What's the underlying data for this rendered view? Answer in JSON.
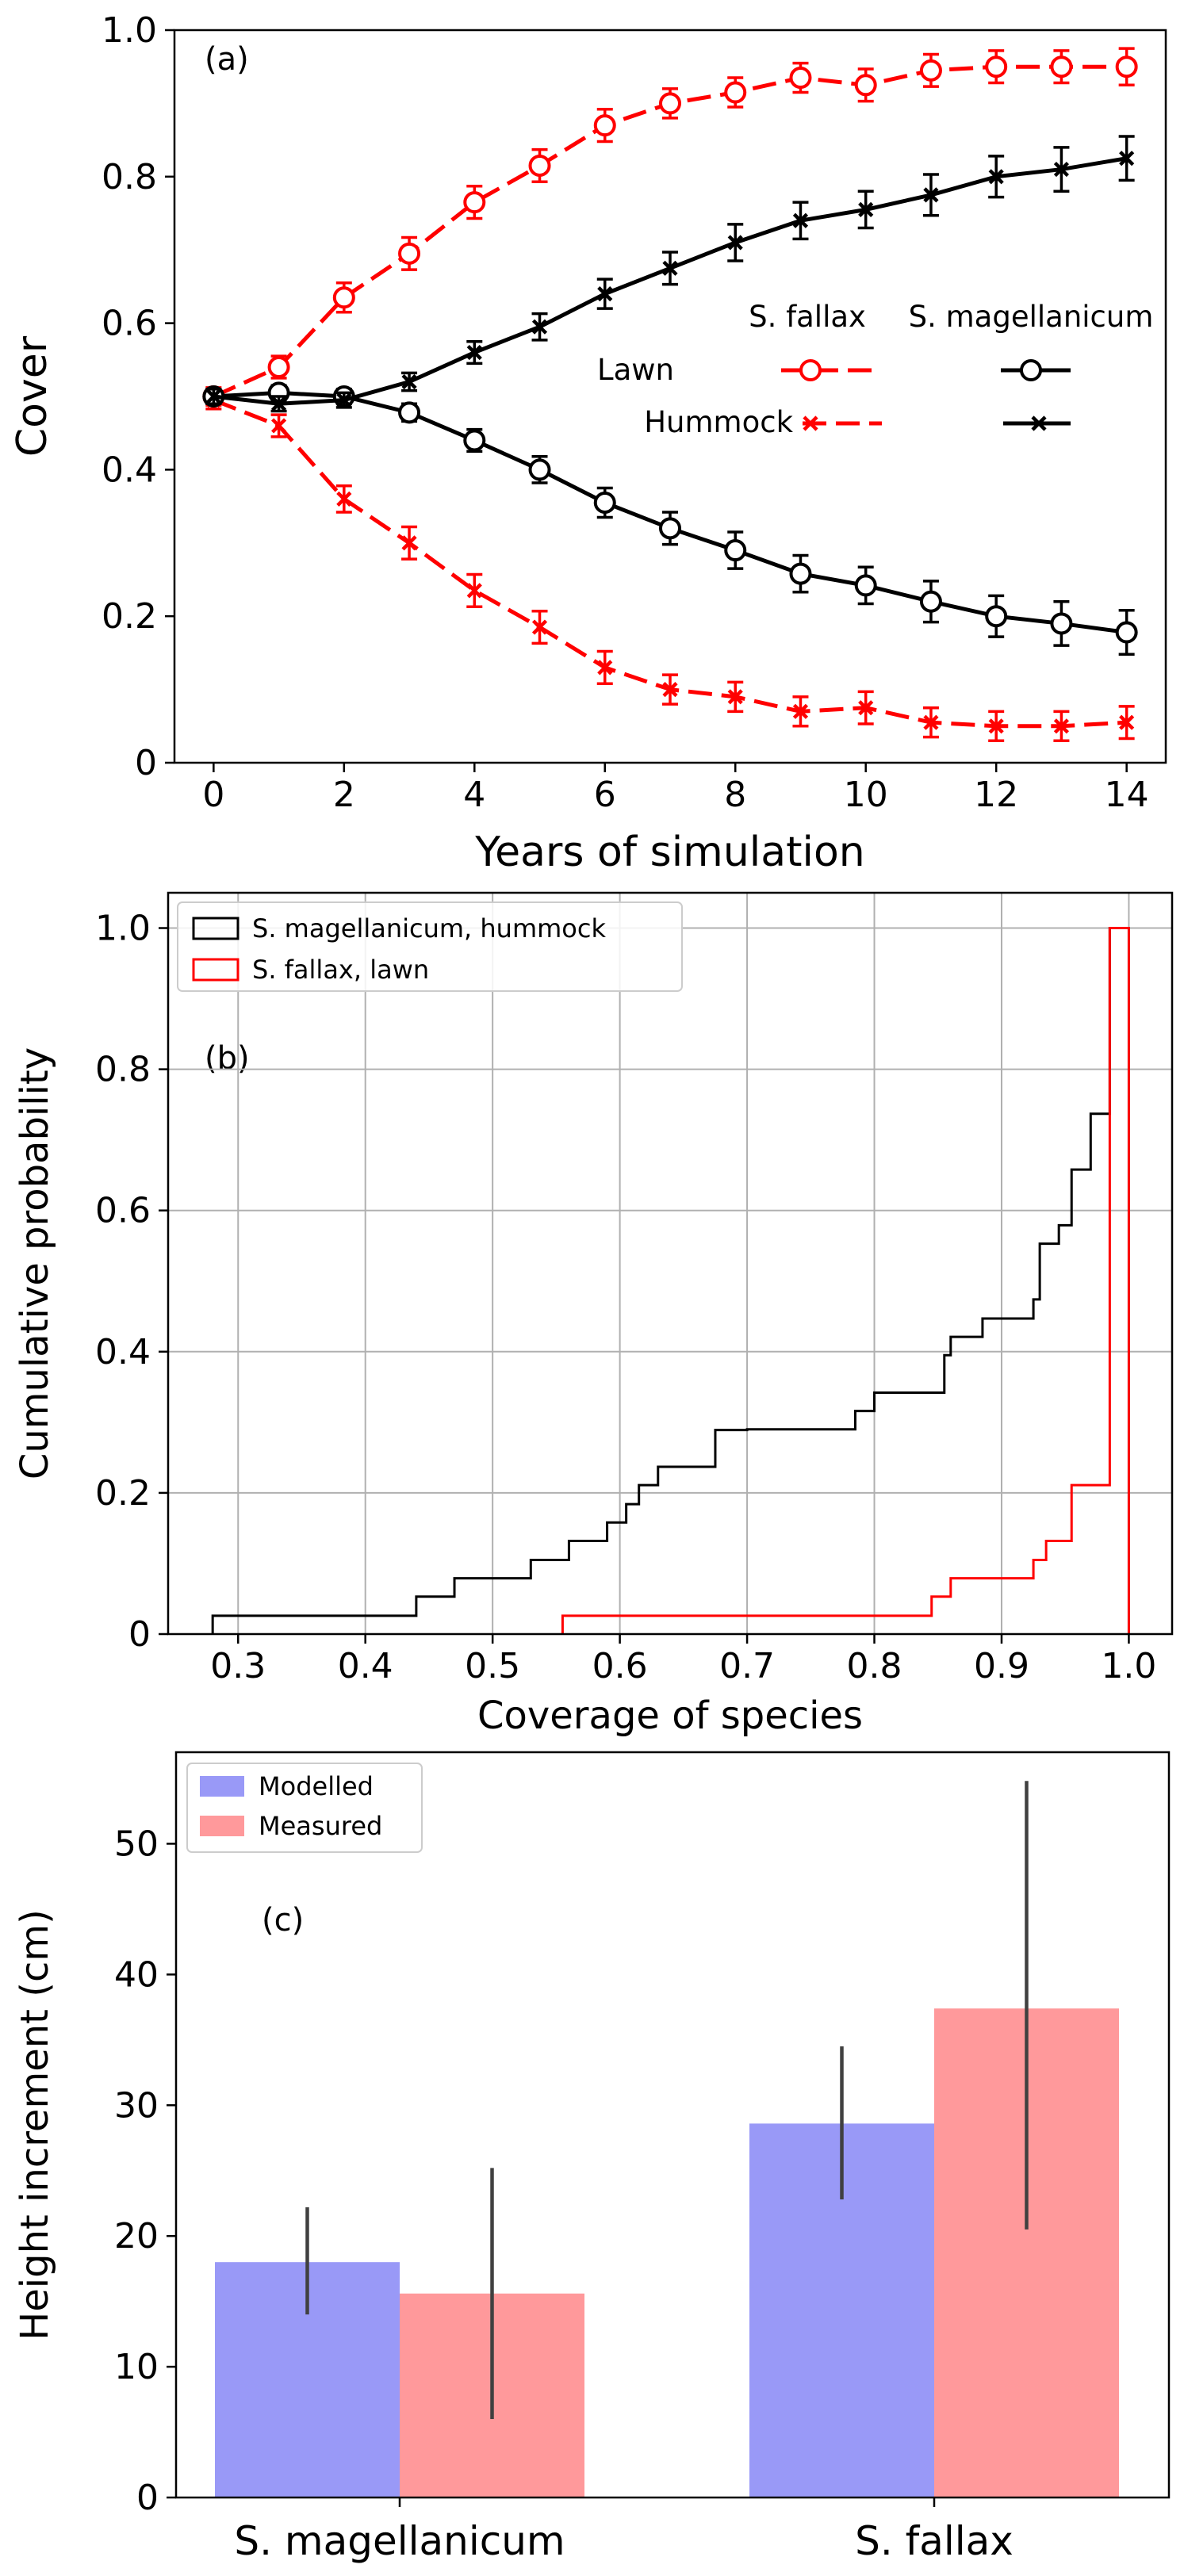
{
  "chart_data": [
    {
      "panel": "(a)",
      "type": "line",
      "xlabel": "Years of simulation",
      "ylabel": "Cover",
      "xlim": [
        -0.6,
        14.6
      ],
      "ylim": [
        0,
        1.0
      ],
      "xticks": [
        0,
        2,
        4,
        6,
        8,
        10,
        12,
        14
      ],
      "yticks": [
        0,
        0.2,
        0.4,
        0.6,
        0.8,
        1.0
      ],
      "ytick_labels": [
        "0",
        "0.2",
        "0.4",
        "0.6",
        "0.8",
        "1.0"
      ],
      "grid": false,
      "legend": {
        "placement": "center-right",
        "col_headers": [
          "S. fallax",
          "S. magellanicum"
        ],
        "row_labels": [
          "Lawn",
          "Hummock"
        ]
      },
      "x": [
        0,
        1,
        2,
        3,
        4,
        5,
        6,
        7,
        8,
        9,
        10,
        11,
        12,
        13,
        14
      ],
      "series": [
        {
          "species": "S. fallax",
          "habitat": "Lawn",
          "color": "#ff0000",
          "dash": true,
          "marker": "circle",
          "values": [
            0.5,
            0.54,
            0.635,
            0.695,
            0.765,
            0.815,
            0.87,
            0.9,
            0.915,
            0.935,
            0.925,
            0.945,
            0.95,
            0.95,
            0.95
          ],
          "err": [
            0.012,
            0.015,
            0.02,
            0.022,
            0.022,
            0.022,
            0.022,
            0.02,
            0.02,
            0.02,
            0.022,
            0.022,
            0.022,
            0.022,
            0.025
          ]
        },
        {
          "species": "S. fallax",
          "habitat": "Hummock",
          "color": "#ff0000",
          "dash": true,
          "marker": "x",
          "values": [
            0.495,
            0.46,
            0.36,
            0.3,
            0.235,
            0.185,
            0.13,
            0.1,
            0.09,
            0.07,
            0.075,
            0.055,
            0.05,
            0.05,
            0.055
          ],
          "err": [
            0.012,
            0.015,
            0.018,
            0.022,
            0.022,
            0.022,
            0.022,
            0.02,
            0.02,
            0.02,
            0.022,
            0.02,
            0.02,
            0.02,
            0.022
          ]
        },
        {
          "species": "S. magellanicum",
          "habitat": "Lawn",
          "color": "#000000",
          "dash": false,
          "marker": "circle",
          "values": [
            0.5,
            0.505,
            0.5,
            0.478,
            0.44,
            0.4,
            0.355,
            0.32,
            0.29,
            0.258,
            0.242,
            0.22,
            0.2,
            0.19,
            0.178
          ],
          "err": [
            0.01,
            0.01,
            0.01,
            0.012,
            0.015,
            0.018,
            0.02,
            0.022,
            0.025,
            0.025,
            0.025,
            0.028,
            0.028,
            0.03,
            0.03
          ]
        },
        {
          "species": "S. magellanicum",
          "habitat": "Hummock",
          "color": "#000000",
          "dash": false,
          "marker": "x",
          "values": [
            0.5,
            0.49,
            0.495,
            0.52,
            0.56,
            0.595,
            0.64,
            0.675,
            0.71,
            0.74,
            0.755,
            0.775,
            0.8,
            0.81,
            0.825
          ],
          "err": [
            0.01,
            0.01,
            0.01,
            0.012,
            0.015,
            0.018,
            0.02,
            0.022,
            0.025,
            0.025,
            0.025,
            0.028,
            0.028,
            0.03,
            0.03
          ]
        }
      ]
    },
    {
      "panel": "(b)",
      "type": "line",
      "subtype": "step-cdf",
      "xlabel": "Coverage of species",
      "ylabel": "Cumulative probability",
      "xlim": [
        0.245,
        1.034
      ],
      "ylim": [
        0,
        1.05
      ],
      "xticks": [
        0.3,
        0.4,
        0.5,
        0.6,
        0.7,
        0.8,
        0.9,
        1.0
      ],
      "xtick_labels": [
        "0.3",
        "0.4",
        "0.5",
        "0.6",
        "0.7",
        "0.8",
        "0.9",
        "1.0"
      ],
      "yticks": [
        0,
        0.2,
        0.4,
        0.6,
        0.8,
        1.0
      ],
      "ytick_labels": [
        "0",
        "0.2",
        "0.4",
        "0.6",
        "0.8",
        "1.0"
      ],
      "grid": true,
      "legend": {
        "placement": "top-left"
      },
      "series": [
        {
          "name": "S. magellanicum, hummock",
          "color": "#000000",
          "x": [
            0.28,
            0.44,
            0.47,
            0.53,
            0.56,
            0.59,
            0.605,
            0.615,
            0.63,
            0.675,
            0.7,
            0.785,
            0.8,
            0.855,
            0.86,
            0.885,
            0.925,
            0.93,
            0.945,
            0.955,
            0.97,
            0.985
          ],
          "y": [
            0.026,
            0.053,
            0.079,
            0.105,
            0.132,
            0.158,
            0.184,
            0.211,
            0.237,
            0.289,
            0.29,
            0.316,
            0.342,
            0.395,
            0.421,
            0.447,
            0.474,
            0.553,
            0.579,
            0.658,
            0.737,
            1.0
          ]
        },
        {
          "name": "S. fallax, lawn",
          "color": "#ff0000",
          "x": [
            0.555,
            0.845,
            0.86,
            0.925,
            0.935,
            0.955,
            0.985
          ],
          "y": [
            0.026,
            0.053,
            0.079,
            0.105,
            0.132,
            0.211,
            1.0
          ]
        }
      ]
    },
    {
      "panel": "(c)",
      "type": "bar",
      "ylabel": "Height increment (cm)",
      "categories": [
        "S. magellanicum",
        "S. fallax"
      ],
      "ylim": [
        0,
        57
      ],
      "yticks": [
        0,
        10,
        20,
        30,
        40,
        50
      ],
      "grid": false,
      "legend": {
        "placement": "top-left"
      },
      "series": [
        {
          "name": "Modelled",
          "color": "#9999f7",
          "values": [
            18.0,
            28.6
          ],
          "err_low": [
            14.0,
            22.8
          ],
          "err_high": [
            22.2,
            34.5
          ]
        },
        {
          "name": "Measured",
          "color": "#ff999b",
          "values": [
            15.6,
            37.4
          ],
          "err_low": [
            6.0,
            20.5
          ],
          "err_high": [
            25.2,
            54.8
          ]
        }
      ]
    }
  ]
}
